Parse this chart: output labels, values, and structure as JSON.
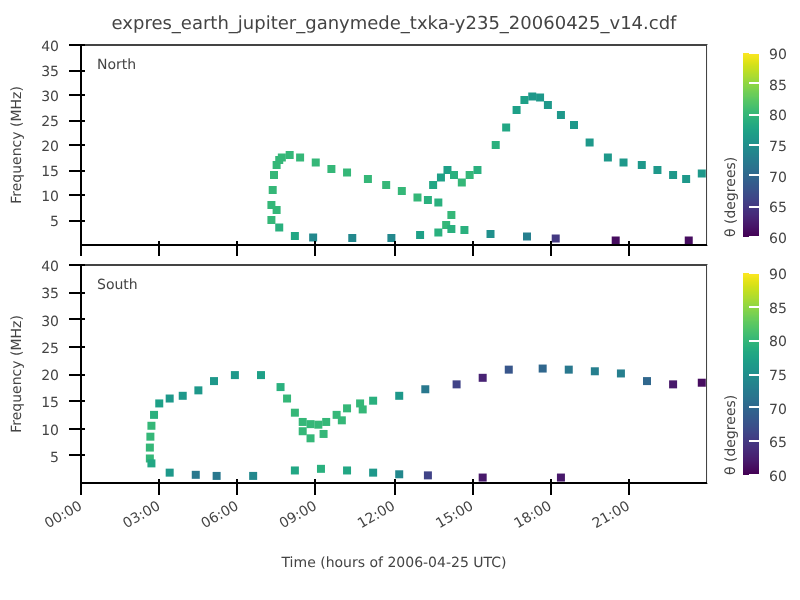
{
  "chart_data": [
    {
      "type": "scatter",
      "title": "expres_earth_jupiter_ganymede_txka-y235_20060425_v14.cdf",
      "ylabel": "Frequency (MHz)",
      "clabel": "θ (degrees)",
      "annotations": [
        "North"
      ],
      "marker": "square",
      "tick_labels": "y",
      "xlim": [
        0,
        24
      ],
      "xticks": [
        0,
        3,
        6,
        9,
        12,
        15,
        18,
        21
      ],
      "ylim": [
        0,
        40
      ],
      "yticks": [
        5,
        10,
        15,
        20,
        25,
        30,
        35,
        40
      ],
      "clim": [
        60,
        90
      ],
      "cticks": [
        60,
        65,
        70,
        75,
        80,
        85,
        90
      ],
      "x": [
        7.3,
        7.3,
        7.35,
        7.4,
        7.5,
        7.6,
        7.5,
        7.7,
        8.0,
        8.4,
        9.0,
        9.6,
        10.2,
        11.0,
        11.7,
        12.3,
        12.9,
        13.3,
        13.7,
        13.5,
        13.8,
        14.05,
        14.3,
        14.6,
        14.9,
        14.0,
        14.2,
        15.2,
        15.9,
        16.3,
        16.7,
        17.0,
        17.3,
        17.6,
        17.9,
        18.4,
        18.9,
        19.5,
        20.2,
        20.8,
        21.5,
        22.1,
        22.7,
        23.2,
        23.8,
        7.6,
        8.2,
        8.9,
        10.4,
        11.9,
        13.0,
        13.7,
        14.2,
        14.7,
        15.7,
        17.1,
        18.2,
        20.5,
        23.3
      ],
      "values": [
        5,
        8,
        11,
        14,
        16,
        17,
        7,
        17.5,
        18,
        17.5,
        16.5,
        15.2,
        14.5,
        13.2,
        12,
        10.8,
        9.5,
        9,
        8.5,
        12,
        13.5,
        15,
        14,
        12.5,
        14,
        4,
        6,
        15,
        20,
        23.5,
        27,
        29,
        29.7,
        29.5,
        28,
        26,
        24,
        20.5,
        17.5,
        16.5,
        16,
        15,
        14,
        13.2,
        14.3,
        3.5,
        1.8,
        1.5,
        1.4,
        1.4,
        2.0,
        2.5,
        3.2,
        3.0,
        2.2,
        1.7,
        1.3,
        0.9,
        0.9
      ],
      "cvalues": [
        80,
        80,
        80,
        80,
        80,
        80,
        80,
        80,
        80,
        80,
        80,
        80,
        80,
        80,
        80,
        80,
        80,
        79,
        79,
        78,
        77,
        77,
        79,
        80,
        80,
        80,
        80,
        79,
        79,
        78,
        77,
        77,
        76,
        76,
        76,
        76,
        76,
        76,
        76,
        76,
        76,
        76,
        76,
        76,
        76,
        79,
        78,
        74,
        74,
        74,
        77,
        79,
        79,
        79,
        75,
        73,
        65,
        61,
        61
      ]
    },
    {
      "type": "scatter",
      "xlabel": "Time (hours of 2006-04-25 UTC)",
      "ylabel": "Frequency (MHz)",
      "clabel": "θ (degrees)",
      "annotations": [
        "South"
      ],
      "marker": "square",
      "xlim": [
        0,
        24
      ],
      "xticks": [
        {
          "value": 0,
          "label": "00:00"
        },
        {
          "value": 3,
          "label": "03:00"
        },
        {
          "value": 6,
          "label": "06:00"
        },
        {
          "value": 9,
          "label": "09:00"
        },
        {
          "value": 12,
          "label": "12:00"
        },
        {
          "value": 15,
          "label": "15:00"
        },
        {
          "value": 18,
          "label": "18:00"
        },
        {
          "value": 21,
          "label": "21:00"
        }
      ],
      "ylim": [
        0,
        40
      ],
      "yticks": [
        5,
        10,
        15,
        20,
        25,
        30,
        35,
        40
      ],
      "clim": [
        60,
        90
      ],
      "cticks": [
        60,
        65,
        70,
        75,
        80,
        85,
        90
      ],
      "x": [
        2.64,
        2.64,
        2.66,
        2.7,
        2.8,
        3.0,
        3.4,
        3.9,
        4.5,
        5.1,
        5.9,
        6.9,
        7.65,
        7.9,
        8.2,
        8.5,
        8.8,
        9.1,
        9.4,
        9.8,
        10.2,
        10.7,
        11.2,
        8.5,
        8.8,
        9.3,
        10.0,
        10.8,
        12.2,
        13.2,
        14.4,
        15.4,
        16.4,
        17.7,
        18.7,
        19.7,
        20.7,
        21.7,
        22.7,
        23.8,
        2.7,
        3.4,
        4.4,
        5.2,
        6.6,
        8.2,
        9.2,
        10.2,
        11.2,
        12.2,
        13.3,
        15.4,
        18.4
      ],
      "values": [
        4.5,
        6.5,
        8.5,
        10.5,
        12.5,
        14.6,
        15.5,
        16.0,
        17.0,
        18.7,
        19.8,
        19.8,
        17.6,
        15.5,
        12.9,
        11.2,
        10.8,
        10.7,
        11.2,
        12.5,
        13.7,
        14.6,
        15.1,
        9.5,
        8.2,
        9.0,
        11.5,
        13.5,
        16.0,
        17.2,
        18.1,
        19.3,
        20.8,
        21.0,
        20.8,
        20.5,
        20.1,
        18.7,
        18.1,
        18.4,
        3.6,
        1.9,
        1.5,
        1.3,
        1.3,
        2.3,
        2.6,
        2.3,
        1.9,
        1.6,
        1.4,
        1.0,
        1.0
      ],
      "cvalues": [
        80,
        80,
        80,
        80,
        79,
        77,
        76,
        76,
        76,
        76,
        76,
        77,
        79,
        80,
        80,
        80,
        80,
        80,
        80,
        80,
        80,
        80,
        79,
        80,
        80,
        80,
        80,
        80,
        76,
        72,
        66,
        63,
        68,
        70,
        72,
        73,
        73,
        70,
        62,
        61,
        78,
        76,
        72,
        72,
        74,
        78,
        79,
        78,
        76,
        74,
        66,
        62,
        62
      ]
    }
  ]
}
